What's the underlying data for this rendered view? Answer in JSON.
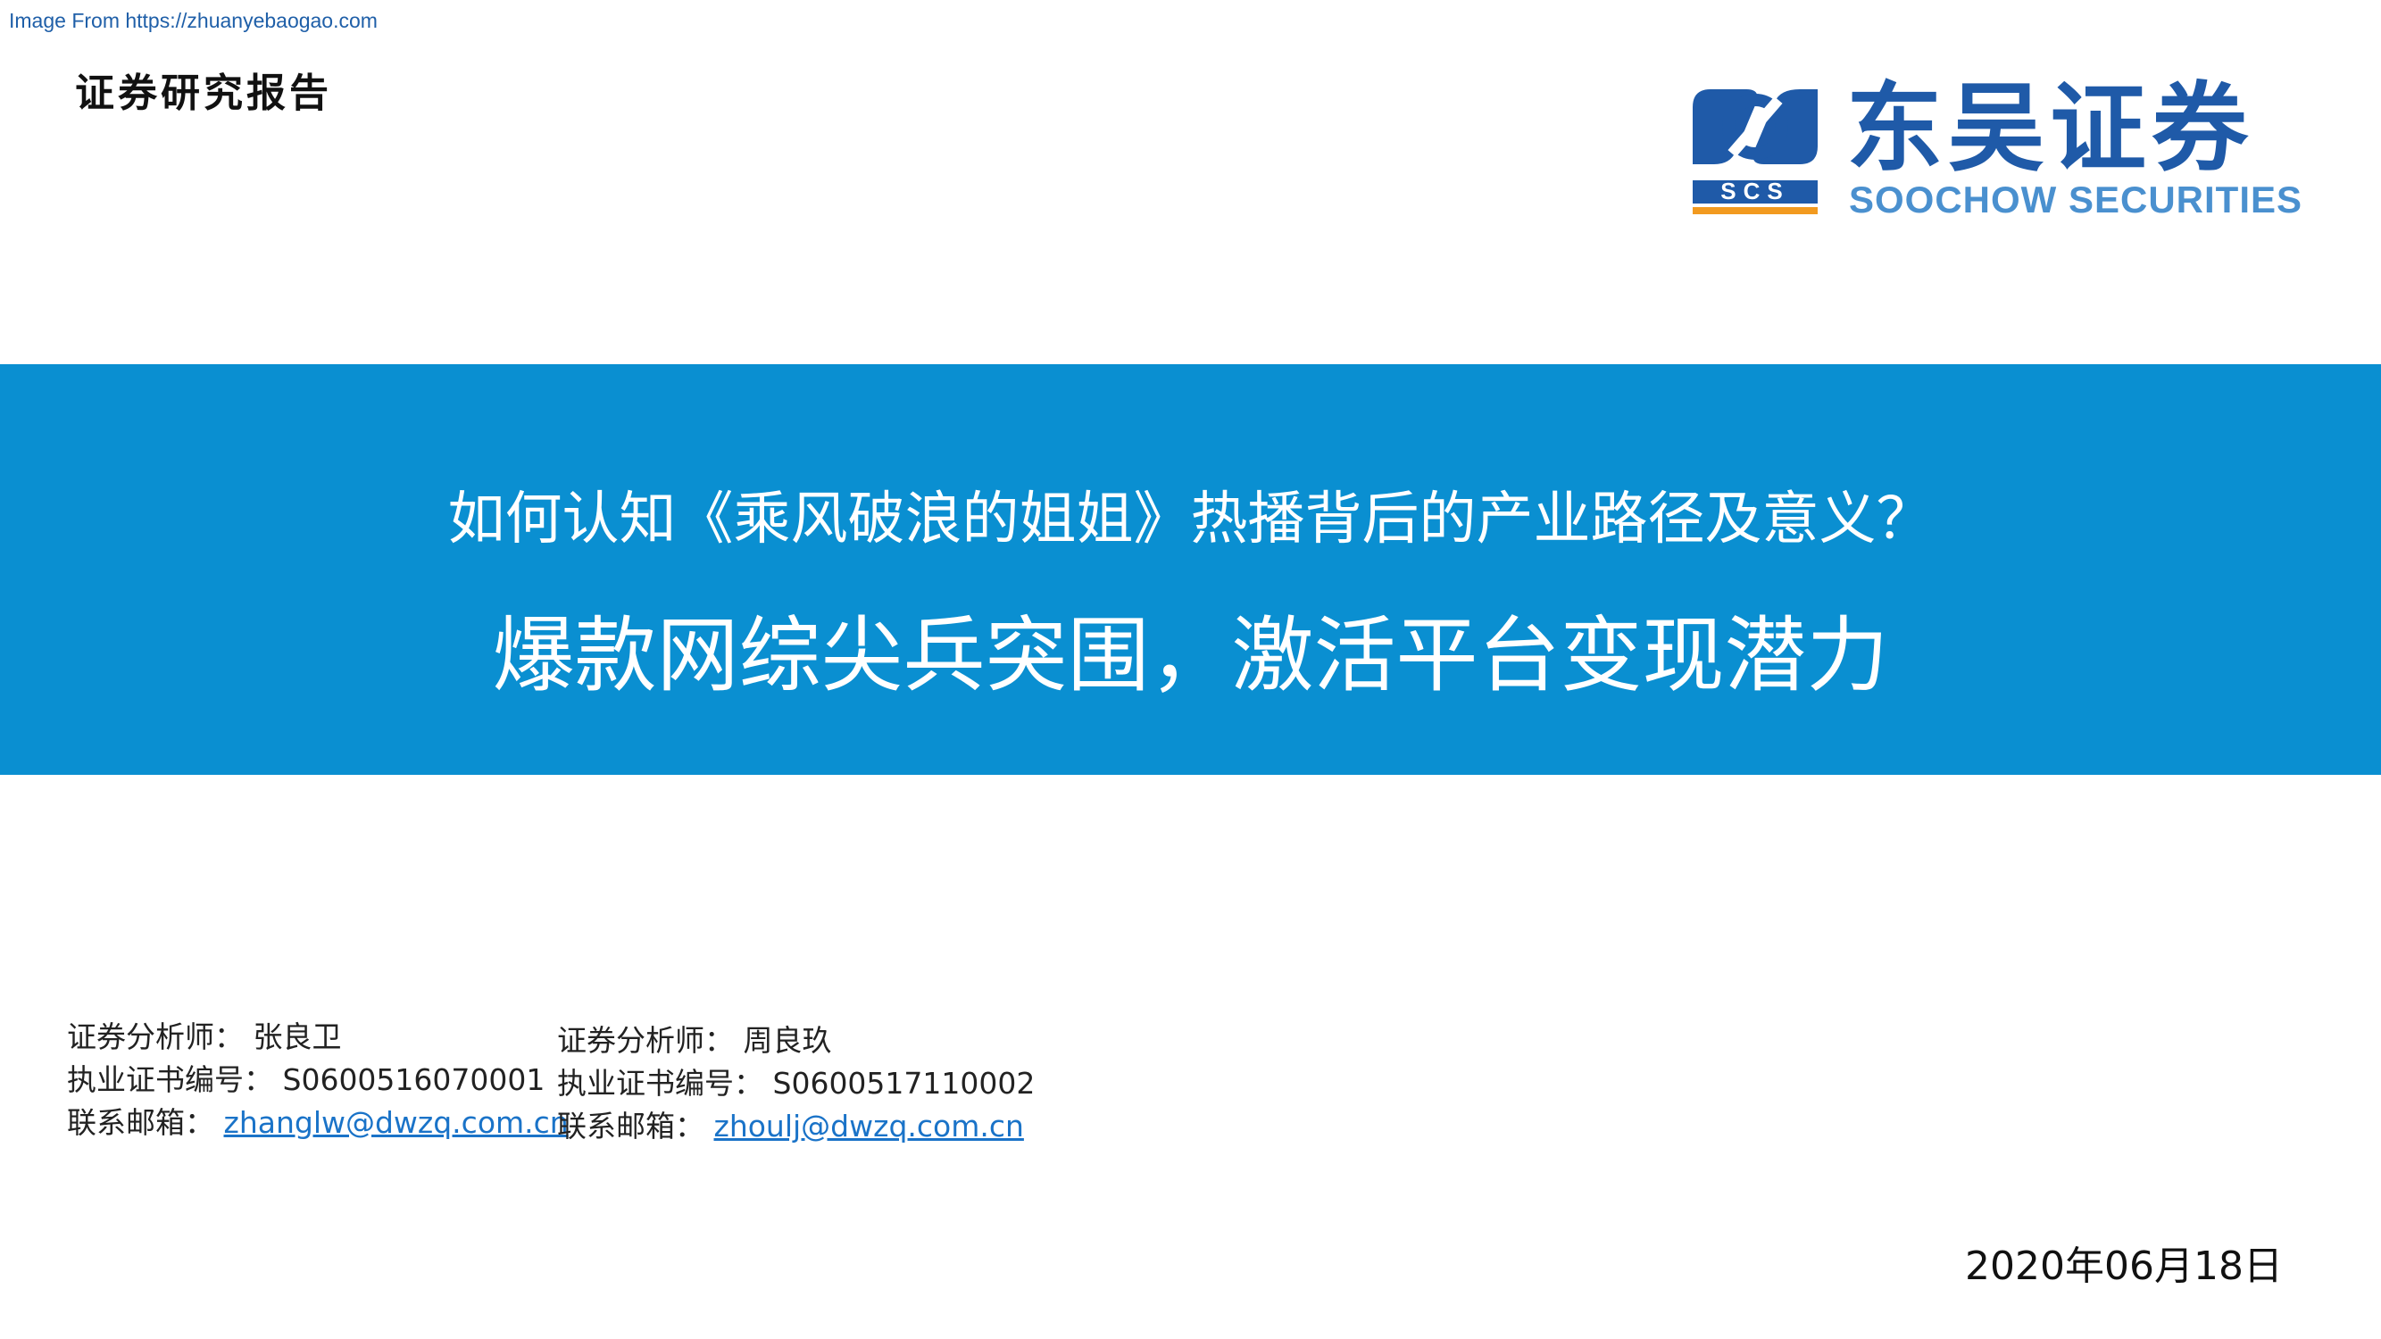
{
  "source_link": "Image From https://zhuanyebaogao.com",
  "report_type": "证券研究报告",
  "logo": {
    "name_cn": "东吴证券",
    "name_en": "SOOCHOW SECURITIES",
    "badge": "SCS",
    "colors": {
      "blue": "#1f5aa8",
      "light_blue": "#4a90cf",
      "orange": "#f29a1f"
    }
  },
  "banner": {
    "color": "#0a8fd1",
    "question": "如何认知《乘风破浪的姐姐》热播背后的产业路径及意义？",
    "headline": "爆款网综尖兵突围，激活平台变现潜力"
  },
  "analysts": [
    {
      "role_label": "证券分析师：",
      "name": "张良卫",
      "cert_label": "执业证书编号：",
      "cert_no": "S0600516070001",
      "email_label": "联系邮箱：",
      "email": "zhanglw@dwzq.com.cn"
    },
    {
      "role_label": "证券分析师：",
      "name": "周良玖",
      "cert_label": "执业证书编号：",
      "cert_no": "S0600517110002",
      "email_label": "联系邮箱：",
      "email": "zhoulj@dwzq.com.cn"
    }
  ],
  "date": "2020年06月18日"
}
